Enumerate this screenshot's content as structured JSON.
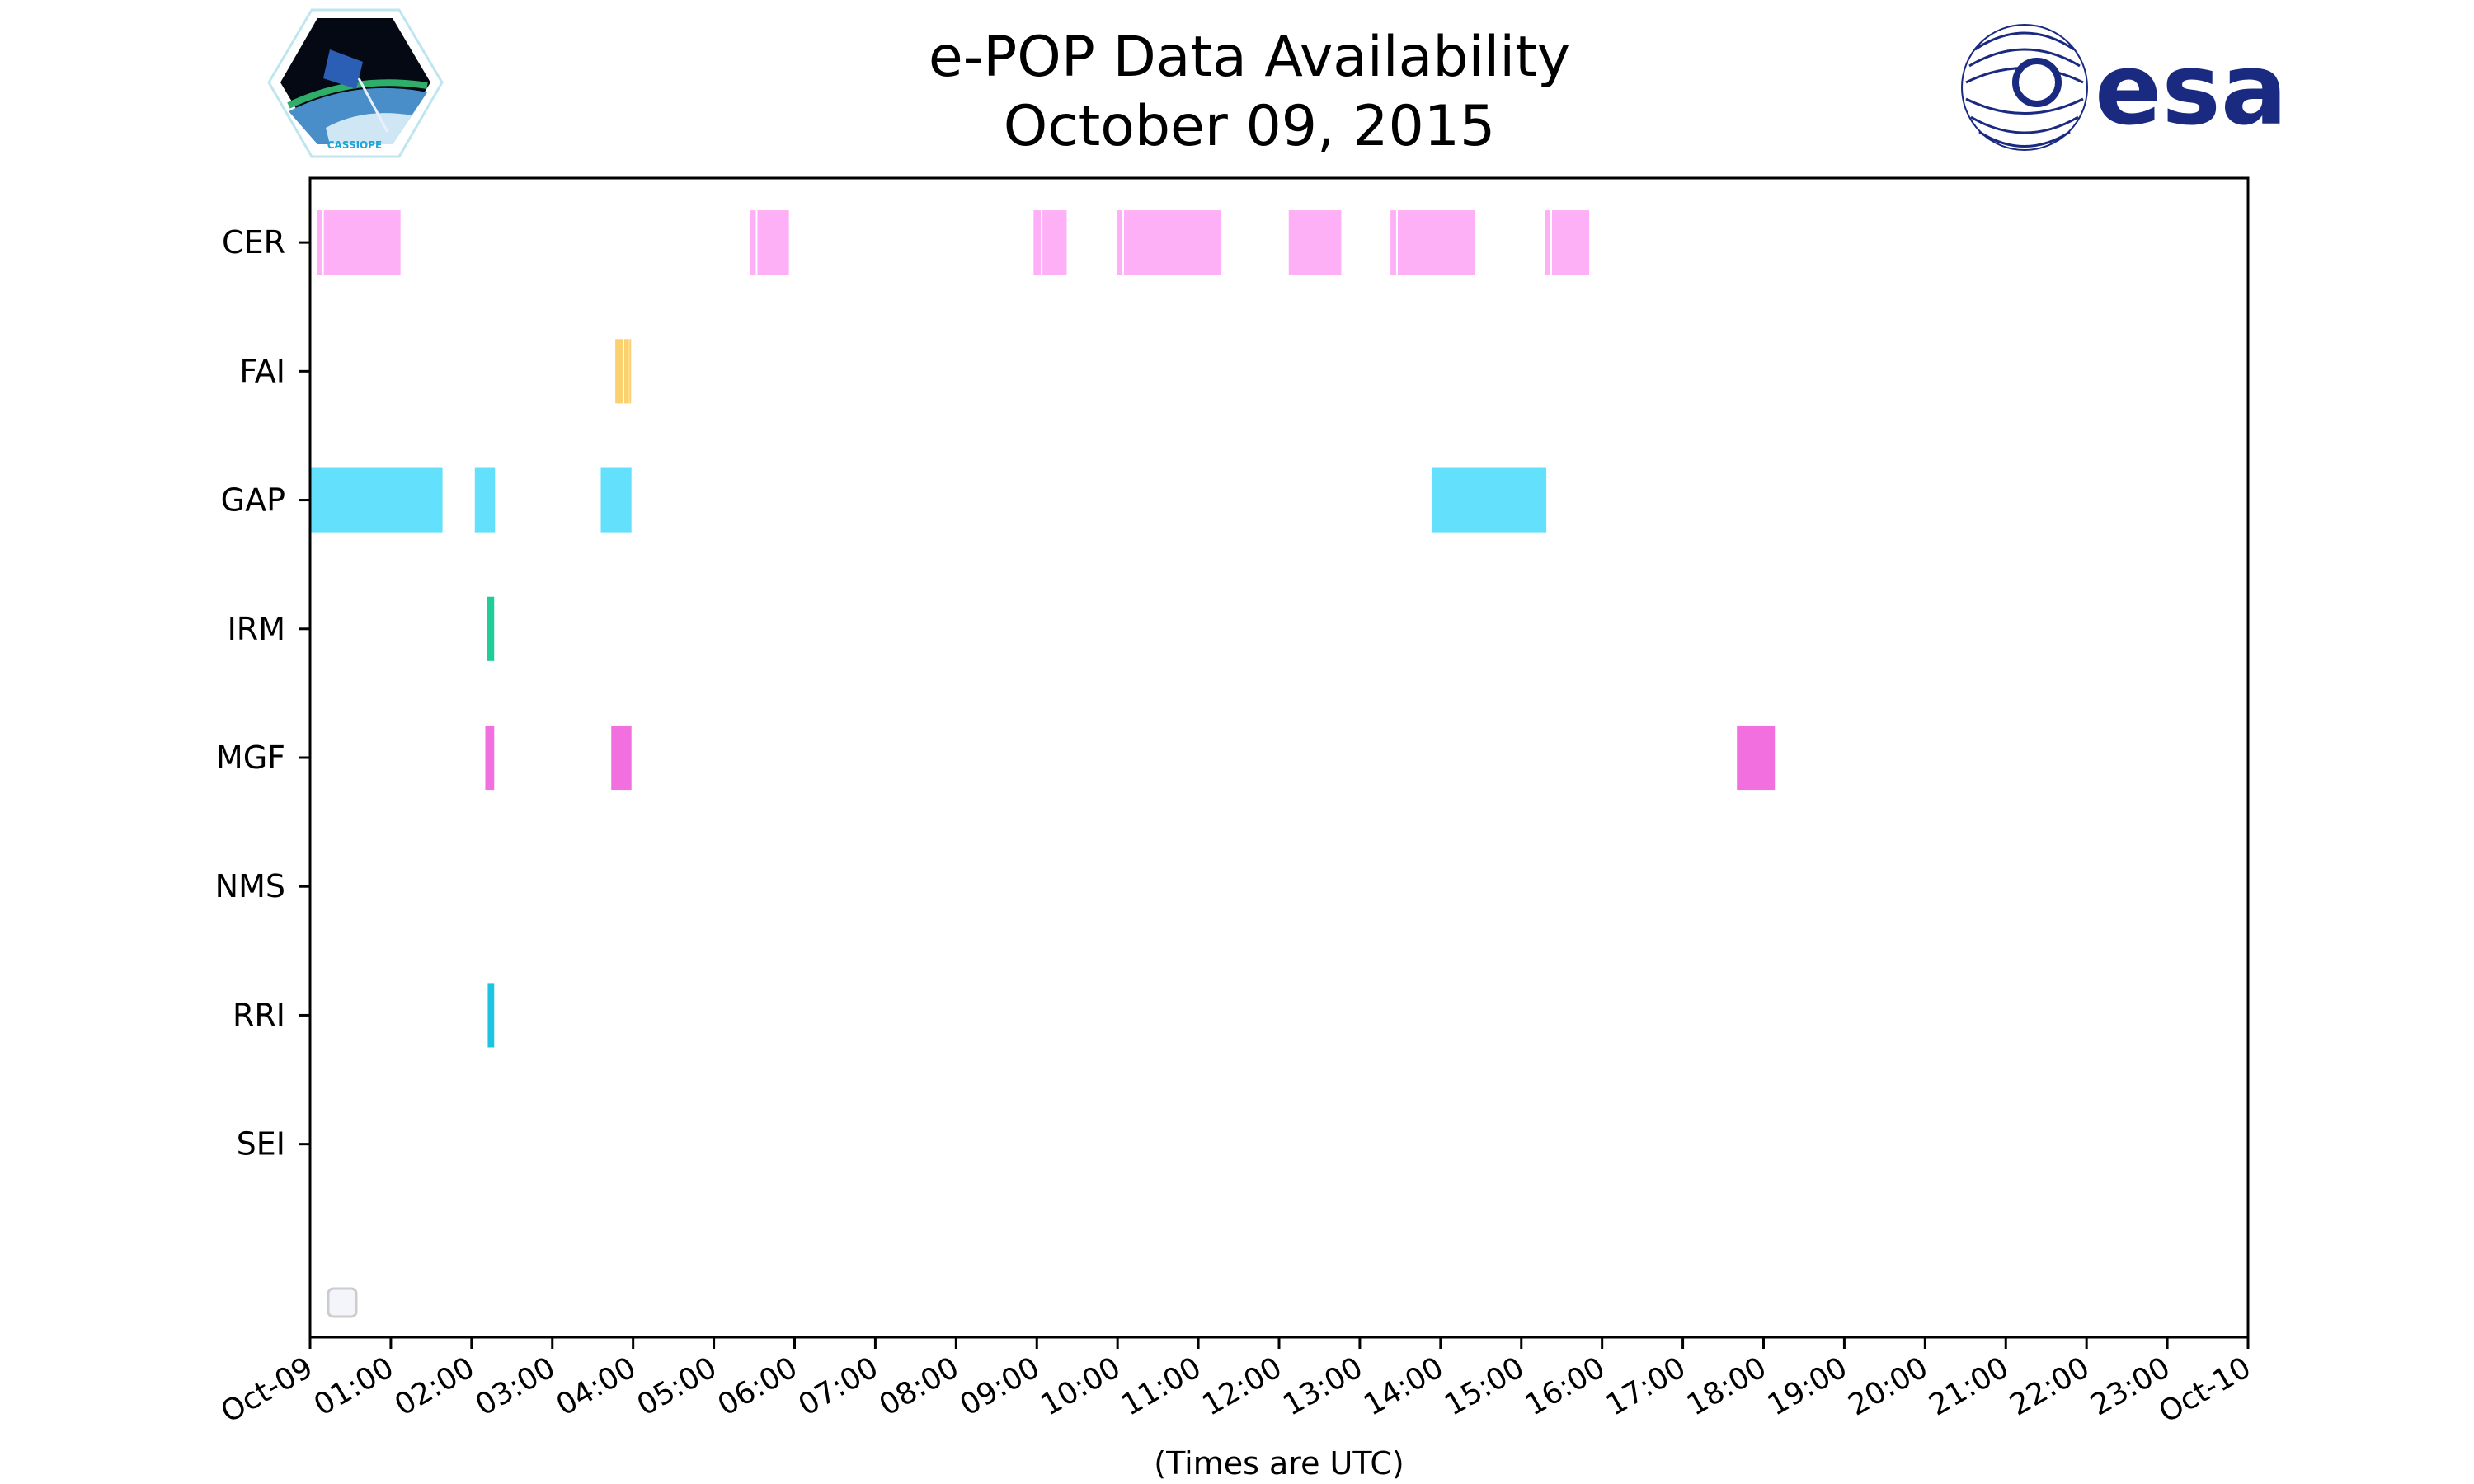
{
  "chart_data": {
    "type": "timeline",
    "title": "e-POP Data Availability",
    "subtitle": "October 09, 2015",
    "xlabel": "(Times are UTC)",
    "ylabel": "",
    "xlim_hours": [
      0,
      24
    ],
    "x_tick_labels": [
      "Oct-09",
      "01:00",
      "02:00",
      "03:00",
      "04:00",
      "05:00",
      "06:00",
      "07:00",
      "08:00",
      "09:00",
      "10:00",
      "11:00",
      "12:00",
      "13:00",
      "14:00",
      "15:00",
      "16:00",
      "17:00",
      "18:00",
      "19:00",
      "20:00",
      "21:00",
      "22:00",
      "23:00",
      "Oct-10"
    ],
    "categories": [
      "CER",
      "FAI",
      "GAP",
      "IRM",
      "MGF",
      "NMS",
      "RRI",
      "SEI"
    ],
    "legend": {
      "placement": "lower-left",
      "entries": []
    },
    "grid": false,
    "series": [
      {
        "name": "CER",
        "color": "#feb0f7",
        "intervals_hours": [
          [
            0.09,
            0.15
          ],
          [
            0.17,
            1.12
          ],
          [
            5.45,
            5.52
          ],
          [
            5.54,
            5.93
          ],
          [
            8.96,
            9.05
          ],
          [
            9.07,
            9.37
          ],
          [
            9.99,
            10.06
          ],
          [
            10.08,
            11.28
          ],
          [
            12.12,
            12.77
          ],
          [
            13.38,
            13.45
          ],
          [
            13.47,
            14.43
          ],
          [
            15.29,
            15.36
          ],
          [
            15.38,
            15.84
          ]
        ]
      },
      {
        "name": "FAI",
        "color": "#fbd06e",
        "intervals_hours": [
          [
            3.78,
            3.88
          ],
          [
            3.89,
            3.95
          ],
          [
            3.955,
            3.965
          ]
        ]
      },
      {
        "name": "GAP",
        "color": "#63e0fb",
        "intervals_hours": [
          [
            0.0,
            1.64
          ],
          [
            2.04,
            2.29
          ],
          [
            3.6,
            3.98
          ],
          [
            13.89,
            15.31
          ]
        ]
      },
      {
        "name": "IRM",
        "color": "#22cc99",
        "intervals_hours": [
          [
            2.19,
            2.28
          ]
        ]
      },
      {
        "name": "MGF",
        "color": "#f26fdf",
        "intervals_hours": [
          [
            2.17,
            2.28
          ],
          [
            3.73,
            3.98
          ],
          [
            17.67,
            18.14
          ]
        ]
      },
      {
        "name": "NMS",
        "color": "#999999",
        "intervals_hours": []
      },
      {
        "name": "RRI",
        "color": "#1cc4e4",
        "intervals_hours": [
          [
            2.2,
            2.28
          ]
        ]
      },
      {
        "name": "SEI",
        "color": "#999999",
        "intervals_hours": []
      }
    ]
  },
  "logos": {
    "left": {
      "text": "CASSIOPE"
    },
    "right": {
      "text": "esa"
    }
  }
}
